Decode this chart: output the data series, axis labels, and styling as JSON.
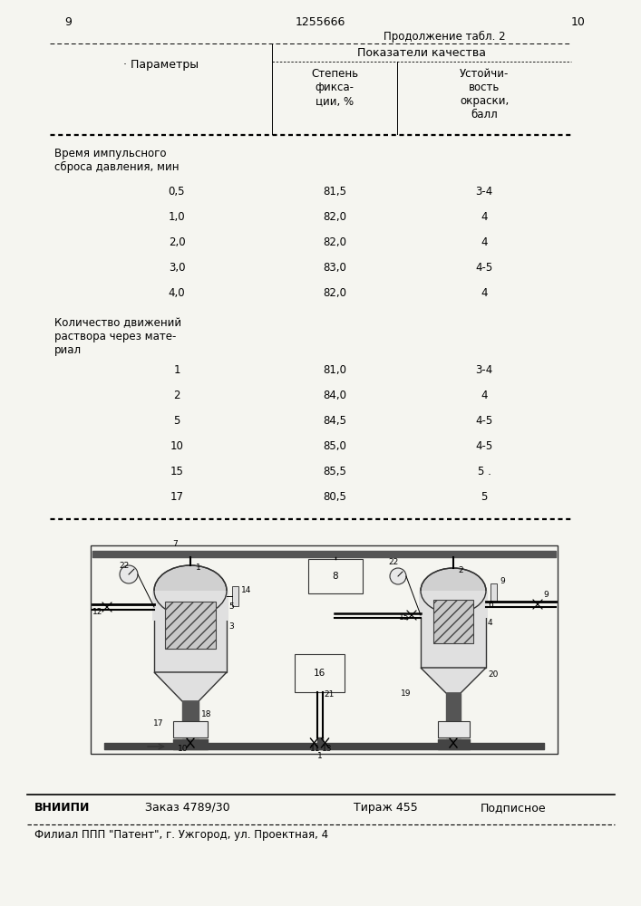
{
  "page_left": "9",
  "page_center": "1255666",
  "page_right": "10",
  "continuation": "Продолжение табл. 2",
  "col1_header": "· Параметры",
  "col2_header": "Показатели качества",
  "col2a_header": "Степень\nфикса-\nции, %",
  "col2b_header": "Устойчи-\nвость\nокраски,\nбалл",
  "section1_label": "Время импульсного\nсброса давления, мин",
  "section1_data": [
    [
      "0,5",
      "81,5",
      "3-4"
    ],
    [
      "1,0",
      "82,0",
      "4"
    ],
    [
      "2,0",
      "82,0",
      "4"
    ],
    [
      "3,0",
      "83,0",
      "4-5"
    ],
    [
      "4,0",
      "82,0",
      "4"
    ]
  ],
  "section2_label": "Количество движений\nраствора через мате-\nриал",
  "section2_data": [
    [
      "1",
      "81,0",
      "3-4"
    ],
    [
      "2",
      "84,0",
      "4"
    ],
    [
      "5",
      "84,5",
      "4-5"
    ],
    [
      "10",
      "85,0",
      "4-5"
    ],
    [
      "15",
      "85,5",
      "5 ."
    ],
    [
      "17",
      "80,5",
      "5"
    ]
  ],
  "footer_bold": "ВНИИПИ",
  "footer_order": "Заказ 4789/30",
  "footer_tirazh": "Тираж 455",
  "footer_podp": "Подписное",
  "footer2": "Филиал ППП \"Патент\", г. Ужгород, ул. Проектная, 4",
  "bg_color": "#f5f5f0"
}
